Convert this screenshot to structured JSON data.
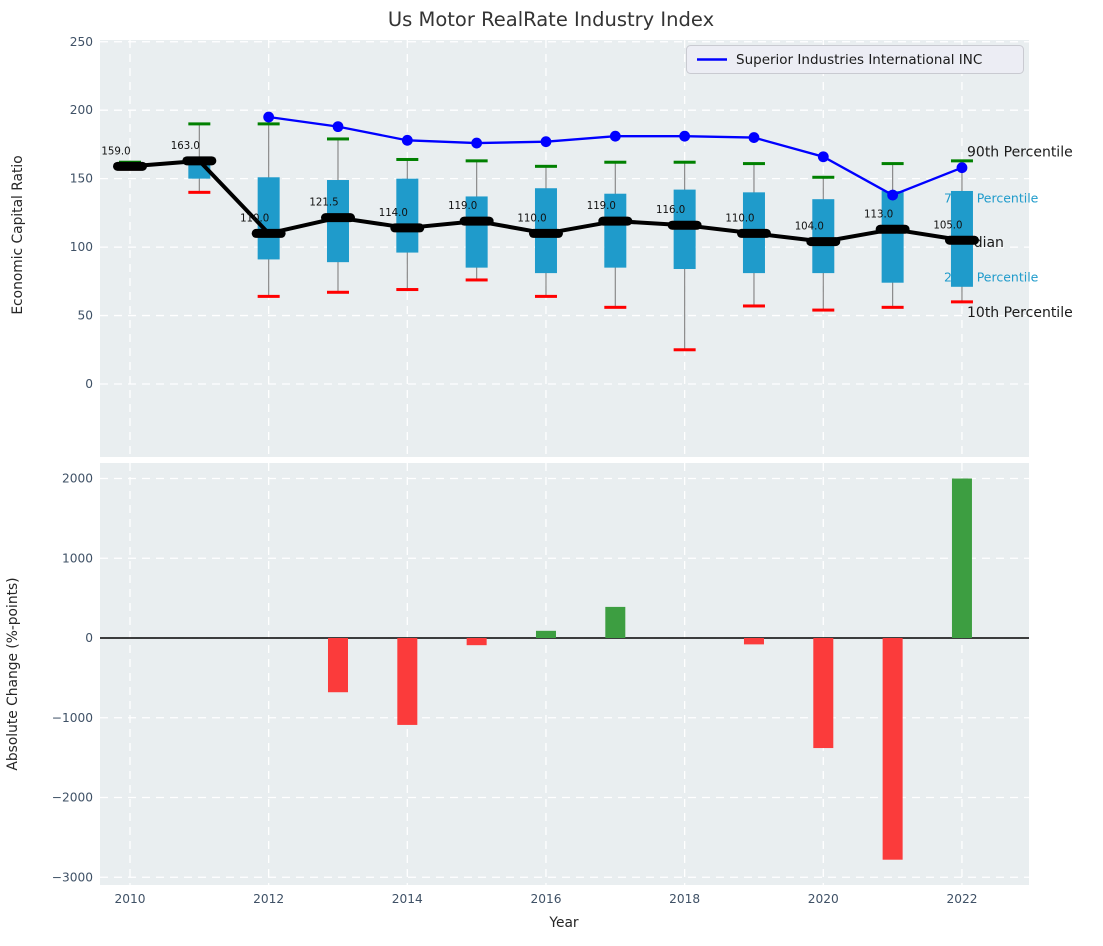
{
  "figure": {
    "title": "Us Motor RealRate Industry Index"
  },
  "chart_data": [
    {
      "type": "boxplot-line",
      "title": "Us Motor RealRate Industry Index",
      "ylabel": "Economic Capital Ratio",
      "xlabel": "",
      "ylim": [
        -55,
        252
      ],
      "yticks": [
        0,
        50,
        100,
        150,
        200,
        250
      ],
      "xticks": [
        2010,
        2012,
        2014,
        2016,
        2018,
        2020,
        2022
      ],
      "grid": true,
      "legend": {
        "label": "Superior Industries International INC",
        "position": "upper right"
      },
      "years": [
        2010,
        2011,
        2012,
        2013,
        2014,
        2015,
        2016,
        2017,
        2018,
        2019,
        2020,
        2021,
        2022
      ],
      "boxes": [
        {
          "year": 2010,
          "p10": 157,
          "p25": 158,
          "median": 159,
          "p75": 161,
          "p90": 162
        },
        {
          "year": 2011,
          "p10": 140,
          "p25": 150,
          "median": 163,
          "p75": 164,
          "p90": 190
        },
        {
          "year": 2012,
          "p10": 64,
          "p25": 91,
          "median": 110,
          "p75": 151,
          "p90": 190
        },
        {
          "year": 2013,
          "p10": 67,
          "p25": 89,
          "median": 121.5,
          "p75": 149,
          "p90": 179
        },
        {
          "year": 2014,
          "p10": 69,
          "p25": 96,
          "median": 114,
          "p75": 150,
          "p90": 164
        },
        {
          "year": 2015,
          "p10": 76,
          "p25": 85,
          "median": 119,
          "p75": 137,
          "p90": 163
        },
        {
          "year": 2016,
          "p10": 64,
          "p25": 81,
          "median": 110,
          "p75": 143,
          "p90": 159
        },
        {
          "year": 2017,
          "p10": 56,
          "p25": 85,
          "median": 119,
          "p75": 139,
          "p90": 162
        },
        {
          "year": 2018,
          "p10": 25,
          "p25": 84,
          "median": 116,
          "p75": 142,
          "p90": 162
        },
        {
          "year": 2019,
          "p10": 57,
          "p25": 81,
          "median": 110,
          "p75": 140,
          "p90": 161
        },
        {
          "year": 2020,
          "p10": 54,
          "p25": 81,
          "median": 104,
          "p75": 135,
          "p90": 151
        },
        {
          "year": 2021,
          "p10": 56,
          "p25": 74,
          "median": 113,
          "p75": 141,
          "p90": 161
        },
        {
          "year": 2022,
          "p10": 60,
          "p25": 71,
          "median": 105,
          "p75": 141,
          "p90": 163
        }
      ],
      "median_labels": [
        "159.0",
        "163.0",
        "110.0",
        "121.5",
        "114.0",
        "119.0",
        "110.0",
        "119.0",
        "116.0",
        "110.0",
        "104.0",
        "113.0",
        "105.0"
      ],
      "company_line": {
        "name": "Superior Industries International INC",
        "years": [
          2012,
          2013,
          2014,
          2015,
          2016,
          2017,
          2018,
          2019,
          2020,
          2021,
          2022
        ],
        "values": [
          195,
          188,
          178,
          176,
          177,
          181,
          181,
          180,
          166,
          138,
          158
        ]
      },
      "annotations": [
        {
          "text": "90th Percentile",
          "value": 169,
          "x": 967,
          "color": "#1a1a1a",
          "size": 14
        },
        {
          "text": "75th Percentile",
          "value": 136,
          "x": 944,
          "color": "#1f9bcb",
          "size": 12.5
        },
        {
          "text": "Median",
          "value": 103,
          "x": 953,
          "color": "#1a1a1a",
          "size": 14
        },
        {
          "text": "25th Percentile",
          "value": 78,
          "x": 944,
          "color": "#1f9bcb",
          "size": 12.5
        },
        {
          "text": "10th Percentile",
          "value": 52,
          "x": 967,
          "color": "#1a1a1a",
          "size": 14
        }
      ],
      "colors": {
        "box_fill": "#1f9bcb",
        "p90_whisker": "#008000",
        "p10_whisker": "#ff0000",
        "median": "#000000",
        "company": "#0000ff",
        "stem": "#8a8a8a",
        "plot_bg": "#e9eef0",
        "grid": "#ffffff"
      }
    },
    {
      "type": "bar",
      "title": "",
      "ylabel": "Absolute Change (%-points)",
      "xlabel": "Year",
      "ylim": [
        -3100,
        2200
      ],
      "yticks": [
        -3000,
        -2000,
        -1000,
        0,
        1000,
        2000
      ],
      "xticks": [
        2010,
        2012,
        2014,
        2016,
        2018,
        2020,
        2022
      ],
      "grid": true,
      "categories": [
        2010,
        2011,
        2012,
        2013,
        2014,
        2015,
        2016,
        2017,
        2018,
        2019,
        2020,
        2021,
        2022
      ],
      "values": [
        0,
        0,
        0,
        -680,
        -1090,
        -90,
        90,
        390,
        0,
        -80,
        -1380,
        -2780,
        2000
      ],
      "colors": {
        "positive": "#3d9e41",
        "negative": "#fb3b3b",
        "zero_line": "#000000",
        "plot_bg": "#e9eef0",
        "grid": "#ffffff"
      }
    }
  ]
}
